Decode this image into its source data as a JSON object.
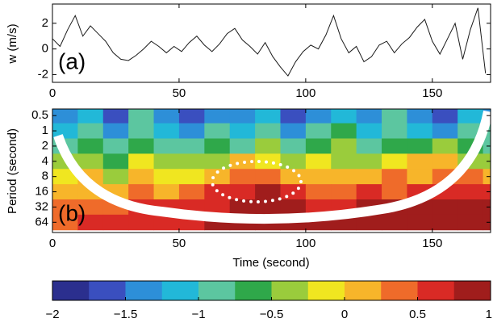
{
  "chart_data": [
    {
      "type": "line",
      "ylabel": "w (m/s)",
      "annotation": "(a)",
      "color": "#1a1a1a",
      "x": [
        0,
        3,
        6,
        9,
        12,
        15,
        18,
        21,
        24,
        27,
        30,
        33,
        36,
        39,
        42,
        45,
        48,
        51,
        54,
        57,
        60,
        63,
        66,
        69,
        72,
        75,
        78,
        81,
        84,
        87,
        90,
        93,
        96,
        99,
        102,
        105,
        108,
        111,
        114,
        117,
        120,
        123,
        126,
        129,
        132,
        135,
        138,
        141,
        144,
        147,
        150,
        153,
        156,
        159,
        162,
        165,
        168,
        171
      ],
      "values": [
        0.8,
        0.2,
        1.5,
        2.6,
        1.0,
        1.8,
        1.2,
        0.6,
        -0.3,
        -0.8,
        -0.9,
        -0.5,
        0.0,
        0.6,
        0.2,
        -0.3,
        0.2,
        -0.2,
        0.5,
        1.0,
        0.3,
        -0.2,
        0.4,
        1.2,
        1.6,
        0.7,
        0.2,
        -0.4,
        0.5,
        -0.6,
        -1.4,
        -2.1,
        -1.0,
        -0.2,
        0.3,
        0.0,
        1.1,
        2.6,
        0.8,
        -0.3,
        0.2,
        -1.0,
        -0.6,
        0.3,
        0.6,
        -0.3,
        0.4,
        0.9,
        1.7,
        2.3,
        0.6,
        -0.4,
        0.8,
        2.0,
        -0.8,
        1.5,
        3.2,
        -1.9
      ],
      "xlim": [
        0,
        173
      ],
      "xticks": [
        0,
        50,
        100,
        150
      ],
      "ylim": [
        -2.6,
        3.5
      ],
      "yticks": [
        -2,
        0,
        2
      ]
    },
    {
      "type": "heatmap",
      "ylabel": "Period (second)",
      "xlabel": "Time (second)",
      "annotation": "(b)",
      "x_edges": [
        0,
        10,
        20,
        30,
        40,
        50,
        60,
        70,
        80,
        90,
        100,
        110,
        120,
        130,
        140,
        150,
        160,
        170,
        180
      ],
      "periods": [
        0.5,
        1,
        2,
        4,
        8,
        16,
        32,
        64
      ],
      "values": [
        [
          -1.5,
          -1.2,
          -1.6,
          -1.0,
          -1.4,
          -1.7,
          -1.3,
          -1.5,
          -1.1,
          -1.6,
          -1.4,
          -1.2,
          -1.5,
          -1.0,
          -1.3,
          -1.6,
          -1.2,
          -1.4
        ],
        [
          -1.2,
          -0.8,
          -1.3,
          -0.9,
          -1.1,
          -1.4,
          -1.0,
          -1.2,
          -0.9,
          -1.3,
          -1.0,
          -0.7,
          -1.2,
          -0.9,
          -1.1,
          -1.3,
          -0.8,
          -1.0
        ],
        [
          -0.9,
          -0.6,
          -0.8,
          -0.7,
          -0.9,
          -1.0,
          -0.6,
          -0.8,
          -0.5,
          -0.9,
          -0.6,
          -0.4,
          -0.8,
          -0.6,
          -0.7,
          -0.5,
          -0.6,
          -0.8
        ],
        [
          -0.5,
          -0.3,
          -0.6,
          -0.2,
          -0.4,
          -0.5,
          -0.3,
          0.1,
          -0.2,
          -0.4,
          -0.1,
          -0.3,
          -0.5,
          -0.2,
          0.0,
          0.1,
          -0.3,
          -0.4
        ],
        [
          -0.2,
          0.0,
          -0.3,
          0.1,
          -0.1,
          -0.2,
          0.2,
          0.4,
          0.3,
          0.1,
          0.2,
          0.0,
          0.1,
          0.3,
          0.2,
          0.4,
          0.3,
          0.1
        ],
        [
          0.1,
          0.2,
          0.0,
          0.3,
          0.2,
          0.3,
          0.5,
          0.7,
          0.8,
          0.6,
          0.4,
          0.3,
          0.5,
          0.4,
          0.5,
          0.6,
          0.7,
          0.5
        ],
        [
          0.3,
          0.4,
          0.3,
          0.5,
          0.6,
          0.6,
          0.7,
          0.8,
          0.9,
          0.8,
          0.7,
          0.7,
          0.8,
          0.9,
          0.9,
          0.8,
          0.9,
          0.8
        ],
        [
          0.4,
          0.5,
          0.5,
          0.6,
          0.7,
          0.7,
          0.8,
          0.8,
          0.9,
          0.9,
          0.8,
          0.8,
          0.9,
          0.9,
          0.8,
          0.8,
          0.9,
          0.8
        ]
      ],
      "xlim": [
        0,
        173
      ],
      "xticks": [
        0,
        50,
        100,
        150
      ],
      "ylim": [
        0.37,
        102
      ],
      "yticks": [
        0.5,
        1,
        2,
        4,
        8,
        16,
        32,
        64
      ],
      "ylog": true,
      "yinverted": true,
      "colormap": [
        "#2b2f8e",
        "#3a4fbf",
        "#2d8fd8",
        "#22b8d8",
        "#5cc6a0",
        "#2fa84a",
        "#9acc3c",
        "#f0e620",
        "#f7b52a",
        "#ef6b2a",
        "#d92a25",
        "#a01d1c"
      ],
      "clim": [
        -2,
        1
      ],
      "cticks": [
        {
          "value": -2,
          "label": "−2"
        },
        {
          "value": -1.5,
          "label": "−1.5"
        },
        {
          "value": -1,
          "label": "−1"
        },
        {
          "value": -0.5,
          "label": "−0.5"
        },
        0,
        0.5,
        1
      ]
    }
  ]
}
